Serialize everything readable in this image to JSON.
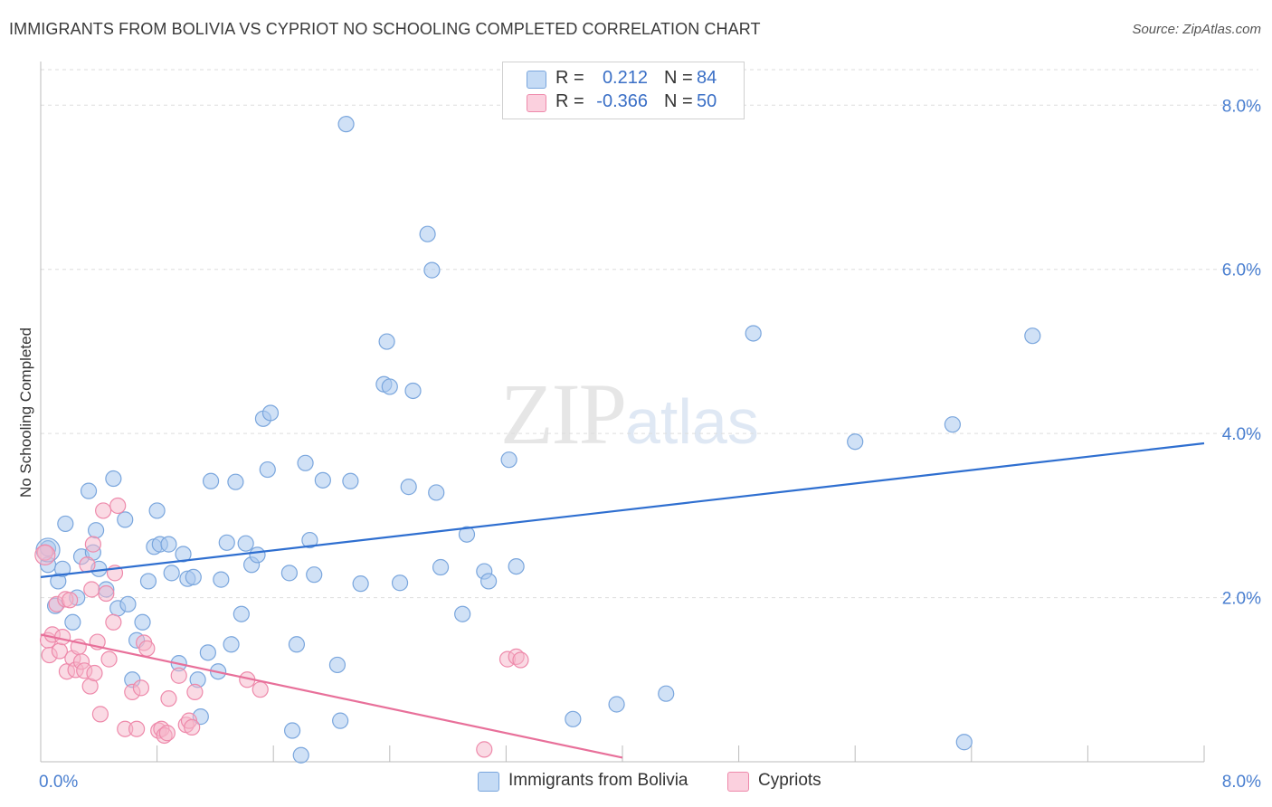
{
  "title": "IMMIGRANTS FROM BOLIVIA VS CYPRIOT NO SCHOOLING COMPLETED CORRELATION CHART",
  "source": "Source: ZipAtlas.com",
  "watermark": {
    "zip": "ZIP",
    "atlas": "atlas"
  },
  "legend_stats": [
    {
      "r_label": "R =",
      "r_value": "0.212",
      "n_label": "N =",
      "n_value": "84"
    },
    {
      "r_label": "R =",
      "r_value": "-0.366",
      "n_label": "N =",
      "n_value": "50"
    }
  ],
  "colors": {
    "blue_fill": "#a9c8ee",
    "blue_stroke": "#7aa6dd",
    "blue_line": "#2f6fd0",
    "pink_fill": "#f6b6ca",
    "pink_stroke": "#ee8aab",
    "pink_line": "#e8709a",
    "tick_text": "#4a7fd0",
    "grid": "#dddddd"
  },
  "chart_data": {
    "type": "scatter",
    "title": "IMMIGRANTS FROM BOLIVIA VS CYPRIOT NO SCHOOLING COMPLETED CORRELATION CHART",
    "xlabel": "",
    "ylabel": "No Schooling Completed",
    "xlim": [
      0,
      8
    ],
    "ylim": [
      0,
      8.4
    ],
    "x_tick_labels": [
      "0.0%",
      "8.0%"
    ],
    "y_ticks": [
      2,
      4,
      6,
      8
    ],
    "y_tick_labels": [
      "2.0%",
      "4.0%",
      "6.0%",
      "8.0%"
    ],
    "grid": "horizontal dashed",
    "legend_position": "top-center",
    "series": [
      {
        "name": "Immigrants from Bolivia",
        "color": "#a9c8ee",
        "trend": {
          "x": [
            0,
            8
          ],
          "y": [
            2.25,
            3.88
          ]
        },
        "points": [
          [
            0.05,
            2.6
          ],
          [
            0.05,
            2.4
          ],
          [
            0.1,
            1.9
          ],
          [
            0.12,
            2.2
          ],
          [
            0.15,
            2.35
          ],
          [
            0.17,
            2.9
          ],
          [
            0.22,
            1.7
          ],
          [
            0.25,
            2.0
          ],
          [
            0.28,
            2.5
          ],
          [
            0.33,
            3.3
          ],
          [
            0.36,
            2.55
          ],
          [
            0.38,
            2.82
          ],
          [
            0.4,
            2.35
          ],
          [
            0.45,
            2.1
          ],
          [
            0.5,
            3.45
          ],
          [
            0.53,
            1.87
          ],
          [
            0.58,
            2.95
          ],
          [
            0.6,
            1.92
          ],
          [
            0.63,
            1.0
          ],
          [
            0.66,
            1.48
          ],
          [
            0.7,
            1.7
          ],
          [
            0.74,
            2.2
          ],
          [
            0.78,
            2.62
          ],
          [
            0.8,
            3.06
          ],
          [
            0.82,
            2.65
          ],
          [
            0.88,
            2.65
          ],
          [
            0.9,
            2.3
          ],
          [
            0.95,
            1.2
          ],
          [
            0.98,
            2.53
          ],
          [
            1.01,
            2.23
          ],
          [
            1.05,
            2.25
          ],
          [
            1.08,
            1.0
          ],
          [
            1.1,
            0.55
          ],
          [
            1.15,
            1.33
          ],
          [
            1.17,
            3.42
          ],
          [
            1.22,
            1.1
          ],
          [
            1.24,
            2.22
          ],
          [
            1.28,
            2.67
          ],
          [
            1.31,
            1.43
          ],
          [
            1.34,
            3.41
          ],
          [
            1.38,
            1.8
          ],
          [
            1.41,
            2.66
          ],
          [
            1.45,
            2.4
          ],
          [
            1.49,
            2.52
          ],
          [
            1.53,
            4.18
          ],
          [
            1.56,
            3.56
          ],
          [
            1.58,
            4.25
          ],
          [
            1.71,
            2.3
          ],
          [
            1.73,
            0.38
          ],
          [
            1.76,
            1.43
          ],
          [
            1.79,
            0.08
          ],
          [
            1.82,
            3.64
          ],
          [
            1.85,
            2.7
          ],
          [
            1.88,
            2.28
          ],
          [
            1.94,
            3.43
          ],
          [
            2.04,
            1.18
          ],
          [
            2.06,
            0.5
          ],
          [
            2.1,
            7.77
          ],
          [
            2.13,
            3.42
          ],
          [
            2.2,
            2.17
          ],
          [
            2.36,
            4.6
          ],
          [
            2.38,
            5.12
          ],
          [
            2.4,
            4.57
          ],
          [
            2.47,
            2.18
          ],
          [
            2.53,
            3.35
          ],
          [
            2.56,
            4.52
          ],
          [
            2.66,
            6.43
          ],
          [
            2.69,
            5.99
          ],
          [
            2.72,
            3.28
          ],
          [
            2.75,
            2.37
          ],
          [
            2.9,
            1.8
          ],
          [
            2.93,
            2.77
          ],
          [
            3.05,
            2.32
          ],
          [
            3.08,
            2.2
          ],
          [
            3.22,
            3.68
          ],
          [
            3.27,
            2.38
          ],
          [
            3.66,
            0.52
          ],
          [
            3.96,
            0.7
          ],
          [
            4.3,
            0.83
          ],
          [
            4.9,
            5.22
          ],
          [
            5.6,
            3.9
          ],
          [
            6.27,
            4.11
          ],
          [
            6.35,
            0.24
          ],
          [
            6.82,
            5.19
          ]
        ]
      },
      {
        "name": "Cypriots",
        "color": "#f6b6ca",
        "trend": {
          "x": [
            0,
            4.0
          ],
          "y": [
            1.55,
            0.05
          ]
        },
        "points": [
          [
            0.03,
            2.55
          ],
          [
            0.05,
            1.48
          ],
          [
            0.06,
            1.3
          ],
          [
            0.08,
            1.55
          ],
          [
            0.11,
            1.92
          ],
          [
            0.13,
            1.35
          ],
          [
            0.15,
            1.52
          ],
          [
            0.17,
            1.98
          ],
          [
            0.18,
            1.1
          ],
          [
            0.2,
            1.97
          ],
          [
            0.22,
            1.26
          ],
          [
            0.24,
            1.12
          ],
          [
            0.26,
            1.4
          ],
          [
            0.28,
            1.22
          ],
          [
            0.3,
            1.11
          ],
          [
            0.32,
            2.4
          ],
          [
            0.34,
            0.92
          ],
          [
            0.35,
            2.1
          ],
          [
            0.36,
            2.65
          ],
          [
            0.37,
            1.08
          ],
          [
            0.39,
            1.46
          ],
          [
            0.41,
            0.58
          ],
          [
            0.43,
            3.06
          ],
          [
            0.45,
            2.05
          ],
          [
            0.47,
            1.25
          ],
          [
            0.5,
            1.7
          ],
          [
            0.51,
            2.3
          ],
          [
            0.53,
            3.12
          ],
          [
            0.58,
            0.4
          ],
          [
            0.63,
            0.85
          ],
          [
            0.66,
            0.4
          ],
          [
            0.69,
            0.9
          ],
          [
            0.71,
            1.45
          ],
          [
            0.73,
            1.38
          ],
          [
            0.81,
            0.38
          ],
          [
            0.83,
            0.4
          ],
          [
            0.85,
            0.32
          ],
          [
            0.87,
            0.35
          ],
          [
            0.88,
            0.77
          ],
          [
            0.95,
            1.05
          ],
          [
            1.0,
            0.45
          ],
          [
            1.02,
            0.5
          ],
          [
            1.04,
            0.42
          ],
          [
            1.06,
            0.85
          ],
          [
            1.42,
            1.0
          ],
          [
            1.51,
            0.88
          ],
          [
            3.05,
            0.15
          ],
          [
            3.21,
            1.25
          ],
          [
            3.27,
            1.28
          ],
          [
            3.3,
            1.24
          ]
        ]
      }
    ]
  }
}
